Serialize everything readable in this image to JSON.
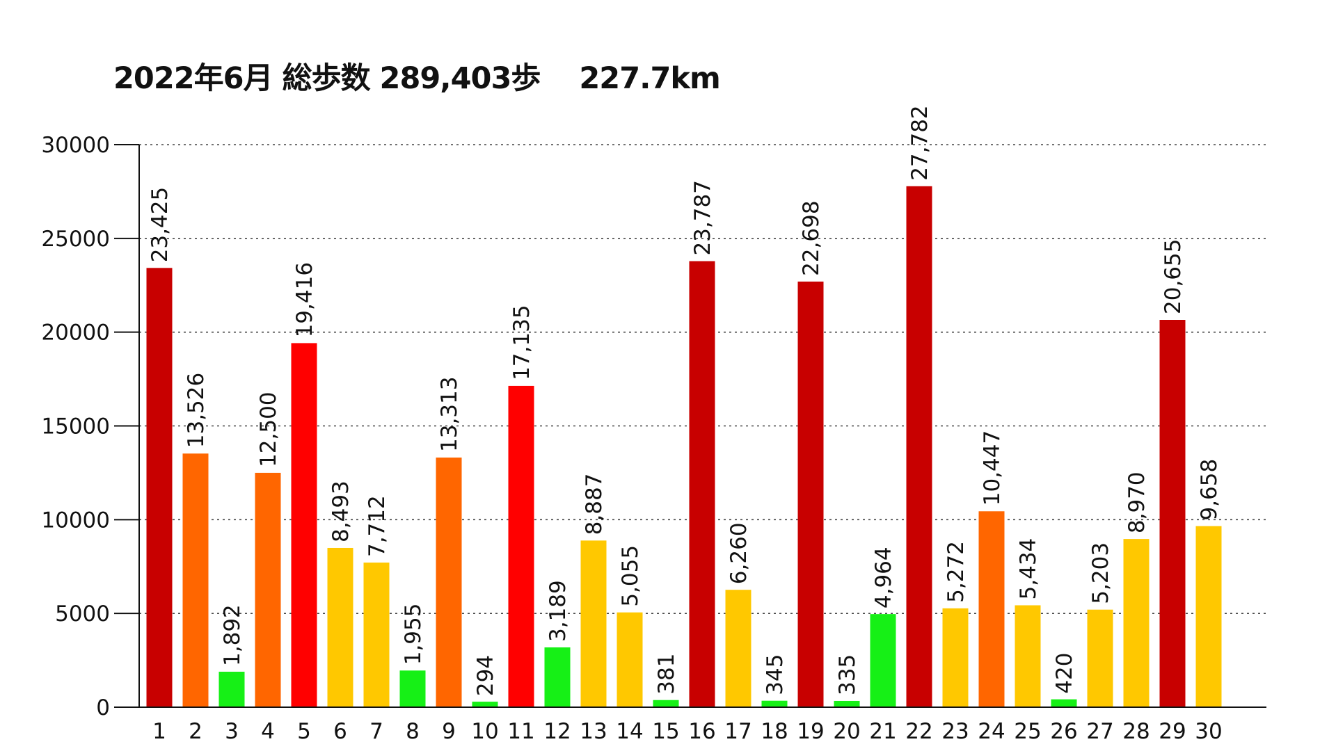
{
  "chart_data": {
    "type": "bar",
    "title": "2022年6月 総歩数 289,403歩　 227.7km",
    "xlabel": "",
    "ylabel": "",
    "ylim": [
      0,
      30000
    ],
    "yticks": [
      0,
      5000,
      10000,
      15000,
      20000,
      25000,
      30000
    ],
    "grid": "horizontal dotted",
    "categories": [
      "1",
      "2",
      "3",
      "4",
      "5",
      "6",
      "7",
      "8",
      "9",
      "10",
      "11",
      "12",
      "13",
      "14",
      "15",
      "16",
      "17",
      "18",
      "19",
      "20",
      "21",
      "22",
      "23",
      "24",
      "25",
      "26",
      "27",
      "28",
      "29",
      "30"
    ],
    "values": [
      23425,
      13526,
      1892,
      12500,
      19416,
      8493,
      7712,
      1955,
      13313,
      294,
      17135,
      3189,
      8887,
      5055,
      381,
      23787,
      6260,
      345,
      22698,
      335,
      4964,
      27782,
      5272,
      10447,
      5434,
      420,
      5203,
      8970,
      20655,
      9658
    ],
    "value_labels": [
      "23,425",
      "13,526",
      "1,892",
      "12,500",
      "19,416",
      "8,493",
      "7,712",
      "1,955",
      "13,313",
      "294",
      "17,135",
      "3,189",
      "8,887",
      "5,055",
      "381",
      "23,787",
      "6,260",
      "345",
      "22,698",
      "335",
      "4,964",
      "27,782",
      "5,272",
      "10,447",
      "5,434",
      "420",
      "5,203",
      "8,970",
      "20,655",
      "9,658"
    ],
    "color_levels": {
      "below_5000": "#16f016",
      "5000_to_9999": "#ffc800",
      "10000_to_14999": "#ff6600",
      "15000_to_19999": "#ff0000",
      "20000_and_above": "#c80000"
    }
  }
}
